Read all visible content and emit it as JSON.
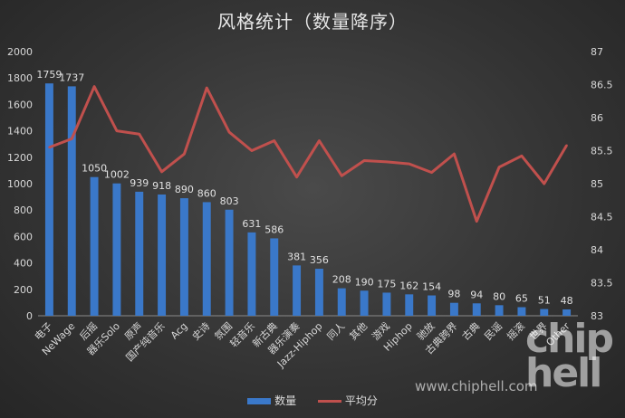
{
  "chart_data": {
    "type": "bar",
    "title": "风格统计（数量降序）",
    "categories": [
      "电子",
      "NeWage",
      "后摇",
      "器乐Solo",
      "原声",
      "国产纯音乐",
      "Acg",
      "史诗",
      "氛围",
      "轻音乐",
      "新古典",
      "器乐演奏",
      "Jazz-Hiphop",
      "同人",
      "其他",
      "游戏",
      "Hiphop",
      "驰放",
      "古典跨界",
      "古典",
      "民谣",
      "摇滚",
      "世界",
      "Other"
    ],
    "series": [
      {
        "name": "数量",
        "axis": "left",
        "type": "bar",
        "color": "#3a78c9",
        "values": [
          1759,
          1737,
          1050,
          1002,
          939,
          918,
          890,
          860,
          803,
          631,
          586,
          381,
          356,
          208,
          190,
          175,
          162,
          154,
          98,
          94,
          80,
          65,
          51,
          48
        ]
      },
      {
        "name": "平均分",
        "axis": "right",
        "type": "line",
        "color": "#c0504d",
        "values": [
          85.55,
          85.68,
          86.47,
          85.8,
          85.75,
          85.18,
          85.45,
          86.45,
          85.78,
          85.5,
          85.65,
          85.1,
          85.65,
          85.12,
          85.35,
          85.33,
          85.3,
          85.17,
          85.45,
          84.43,
          85.25,
          85.42,
          85.0,
          85.58
        ]
      }
    ],
    "y_left": {
      "min": 0,
      "max": 2000,
      "ticks": [
        0,
        200,
        400,
        600,
        800,
        1000,
        1200,
        1400,
        1600,
        1800,
        2000
      ]
    },
    "y_right": {
      "min": 83,
      "max": 87,
      "ticks": [
        83,
        83.5,
        84,
        84.5,
        85,
        85.5,
        86,
        86.5,
        87
      ]
    },
    "legend": {
      "position": "bottom"
    },
    "grid": false
  },
  "watermark": {
    "logo_text": "chip hell",
    "url": "www.chiphell.com"
  }
}
